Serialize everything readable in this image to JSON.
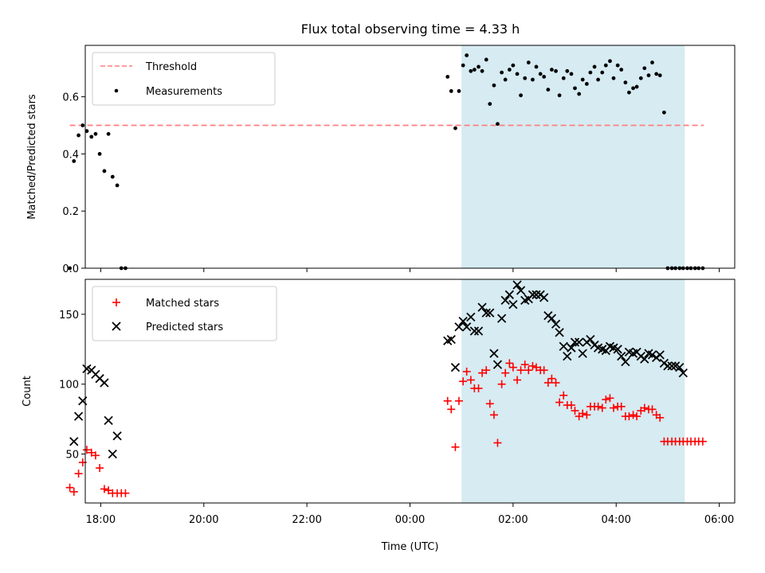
{
  "chart_data": [
    {
      "type": "scatter",
      "title": "Flux total observing time = 4.33 h",
      "xlabel": "",
      "ylabel": "Matched/Predicted stars",
      "x_unit": "hours relative to 00:00 UTC",
      "xlim": [
        -6.3,
        6.3
      ],
      "ylim": [
        0,
        0.78
      ],
      "yticks": [
        0.0,
        0.2,
        0.4,
        0.6
      ],
      "ytick_labels": [
        "0.0",
        "0.2",
        "0.4",
        "0.6"
      ],
      "legend": {
        "position": "upper-left",
        "entries": [
          "Threshold",
          "Measurements"
        ]
      },
      "threshold": {
        "name": "Threshold",
        "value": 0.5,
        "x_range": [
          -6.6,
          5.7
        ],
        "color": "#ff7f7f",
        "style": "dashed"
      },
      "shaded_region": {
        "x_range": [
          1.0,
          5.33
        ],
        "color": "#add8e6"
      },
      "series": [
        {
          "name": "Measurements",
          "color": "#000000",
          "x": [
            -6.6,
            -6.52,
            -6.43,
            -6.35,
            -6.27,
            -6.18,
            -6.1,
            -6.02,
            -5.93,
            -5.85,
            -5.77,
            -5.68,
            -5.6,
            -5.52,
            0.73,
            0.8,
            0.88,
            0.95,
            1.03,
            1.1,
            1.18,
            1.25,
            1.33,
            1.4,
            1.48,
            1.55,
            1.63,
            1.7,
            1.78,
            1.85,
            1.93,
            2.0,
            2.08,
            2.15,
            2.23,
            2.3,
            2.38,
            2.45,
            2.53,
            2.6,
            2.68,
            2.75,
            2.83,
            2.9,
            2.98,
            3.05,
            3.13,
            3.2,
            3.28,
            3.35,
            3.43,
            3.5,
            3.58,
            3.65,
            3.73,
            3.8,
            3.88,
            3.95,
            4.03,
            4.1,
            4.18,
            4.25,
            4.33,
            4.4,
            4.48,
            4.55,
            4.63,
            4.7,
            4.78,
            4.85,
            4.93,
            5.0,
            5.08,
            5.15,
            5.23,
            5.3,
            5.38,
            5.45,
            5.53,
            5.6,
            5.68
          ],
          "y": [
            0.0,
            0.375,
            0.465,
            0.5,
            0.48,
            0.46,
            0.47,
            0.4,
            0.34,
            0.47,
            0.32,
            0.29,
            0.0,
            0.0,
            0.67,
            0.62,
            0.49,
            0.62,
            0.71,
            0.745,
            0.69,
            0.695,
            0.705,
            0.69,
            0.73,
            0.575,
            0.64,
            0.505,
            0.685,
            0.66,
            0.695,
            0.71,
            0.68,
            0.605,
            0.665,
            0.72,
            0.66,
            0.705,
            0.68,
            0.67,
            0.625,
            0.695,
            0.69,
            0.605,
            0.665,
            0.69,
            0.68,
            0.63,
            0.61,
            0.66,
            0.645,
            0.685,
            0.705,
            0.66,
            0.685,
            0.71,
            0.725,
            0.665,
            0.71,
            0.695,
            0.65,
            0.615,
            0.63,
            0.635,
            0.665,
            0.7,
            0.675,
            0.72,
            0.68,
            0.675,
            0.545,
            0.0,
            0.0,
            0.0,
            0.0,
            0.0,
            0.0,
            0.0,
            0.0,
            0.0,
            0.0
          ]
        }
      ]
    },
    {
      "type": "scatter",
      "title": "",
      "xlabel": "Time (UTC)",
      "ylabel": "Count",
      "x_unit": "hours relative to 00:00 UTC",
      "xlim": [
        -6.3,
        6.3
      ],
      "ylim": [
        15,
        175
      ],
      "yticks": [
        50,
        100,
        150
      ],
      "ytick_labels": [
        "50",
        "100",
        "150"
      ],
      "xticks": [
        -6,
        -4,
        -2,
        0,
        2,
        4,
        6
      ],
      "xtick_labels": [
        "18:00",
        "20:00",
        "22:00",
        "00:00",
        "02:00",
        "04:00",
        "06:00"
      ],
      "legend": {
        "position": "upper-left",
        "entries": [
          "Matched stars",
          "Predicted stars"
        ]
      },
      "shaded_region": {
        "x_range": [
          1.0,
          5.33
        ],
        "color": "#add8e6"
      },
      "series": [
        {
          "name": "Matched stars",
          "color": "#ff0000",
          "marker": "+",
          "x": [
            -6.6,
            -6.52,
            -6.43,
            -6.35,
            -6.27,
            -6.18,
            -6.1,
            -6.02,
            -5.93,
            -5.85,
            -5.77,
            -5.68,
            -5.6,
            -5.52,
            0.73,
            0.8,
            0.88,
            0.95,
            1.03,
            1.1,
            1.18,
            1.25,
            1.33,
            1.4,
            1.48,
            1.55,
            1.63,
            1.7,
            1.78,
            1.85,
            1.93,
            2.0,
            2.08,
            2.15,
            2.23,
            2.3,
            2.38,
            2.45,
            2.53,
            2.6,
            2.68,
            2.75,
            2.83,
            2.9,
            2.98,
            3.05,
            3.13,
            3.2,
            3.28,
            3.35,
            3.43,
            3.5,
            3.58,
            3.65,
            3.73,
            3.8,
            3.88,
            3.95,
            4.03,
            4.1,
            4.18,
            4.25,
            4.33,
            4.4,
            4.48,
            4.55,
            4.63,
            4.7,
            4.78,
            4.85,
            4.93,
            5.0,
            5.08,
            5.15,
            5.23,
            5.3,
            5.38,
            5.45,
            5.53,
            5.6,
            5.68
          ],
          "y": [
            26,
            23,
            36,
            44,
            53,
            51,
            49,
            40,
            25,
            24,
            22,
            22,
            22,
            22,
            88,
            82,
            55,
            88,
            102,
            109,
            103,
            97,
            97,
            108,
            110,
            86,
            78,
            58,
            100,
            108,
            115,
            112,
            103,
            110,
            114,
            110,
            113,
            112,
            110,
            110,
            101,
            104,
            101,
            87,
            92,
            85,
            85,
            81,
            77,
            79,
            78,
            84,
            84,
            84,
            83,
            89,
            90,
            83,
            84,
            84,
            77,
            77,
            78,
            77,
            81,
            83,
            82,
            82,
            78,
            76,
            59,
            59,
            59,
            59,
            59,
            59,
            59,
            59,
            59,
            59,
            59
          ]
        },
        {
          "name": "Predicted stars",
          "color": "#000000",
          "marker": "x",
          "x": [
            -6.52,
            -6.43,
            -6.35,
            -6.27,
            -6.18,
            -6.1,
            -6.02,
            -5.93,
            -5.85,
            -5.77,
            -5.68,
            0.73,
            0.8,
            0.88,
            0.95,
            1.03,
            1.1,
            1.18,
            1.25,
            1.33,
            1.4,
            1.48,
            1.55,
            1.63,
            1.7,
            1.78,
            1.85,
            1.93,
            2.0,
            2.08,
            2.15,
            2.23,
            2.3,
            2.38,
            2.45,
            2.53,
            2.6,
            2.68,
            2.75,
            2.83,
            2.9,
            2.98,
            3.05,
            3.13,
            3.2,
            3.28,
            3.35,
            3.43,
            3.5,
            3.58,
            3.65,
            3.73,
            3.8,
            3.88,
            3.95,
            4.03,
            4.1,
            4.18,
            4.25,
            4.33,
            4.4,
            4.48,
            4.55,
            4.63,
            4.7,
            4.78,
            4.85,
            4.93,
            5.0,
            5.08,
            5.15,
            5.23,
            5.3
          ],
          "y": [
            59,
            77,
            88,
            111,
            110,
            107,
            104,
            101,
            74,
            50,
            63,
            131,
            132,
            112,
            141,
            145,
            141,
            148,
            138,
            138,
            155,
            151,
            151,
            122,
            114,
            147,
            160,
            164,
            157,
            171,
            167,
            160,
            161,
            164,
            164,
            164,
            162,
            149,
            147,
            143,
            137,
            127,
            120,
            126,
            130,
            130,
            122,
            130,
            132,
            128,
            126,
            125,
            124,
            127,
            126,
            125,
            120,
            116,
            123,
            122,
            123,
            120,
            118,
            122,
            121,
            119,
            121,
            115,
            113,
            113,
            113,
            112,
            108
          ]
        }
      ]
    }
  ]
}
